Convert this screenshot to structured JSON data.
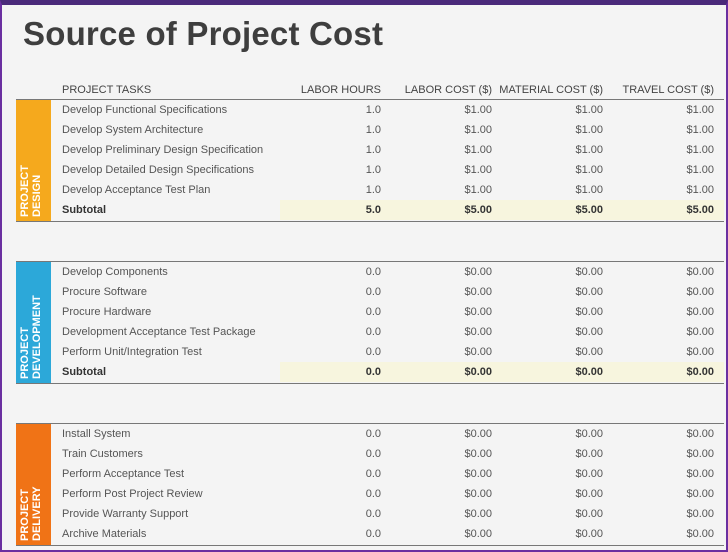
{
  "title": "Source of Project Cost",
  "headers": {
    "tasks": "PROJECT TASKS",
    "hours": "LABOR HOURS",
    "labor": "LABOR COST ($)",
    "material": "MATERIAL COST ($)",
    "travel": "TRAVEL COST ($)"
  },
  "colors": {
    "design": "#F5A91D",
    "development": "#2CA8D9",
    "delivery": "#F07316"
  },
  "sections": [
    {
      "label": "PROJECT\nDESIGN",
      "rows": [
        [
          "Develop Functional Specifications",
          "1.0",
          "$1.00",
          "$1.00",
          "$1.00"
        ],
        [
          "Develop System Architecture",
          "1.0",
          "$1.00",
          "$1.00",
          "$1.00"
        ],
        [
          "Develop Preliminary Design Specification",
          "1.0",
          "$1.00",
          "$1.00",
          "$1.00"
        ],
        [
          "Develop Detailed Design Specifications",
          "1.0",
          "$1.00",
          "$1.00",
          "$1.00"
        ],
        [
          "Develop Acceptance Test Plan",
          "1.0",
          "$1.00",
          "$1.00",
          "$1.00"
        ],
        [
          "Subtotal",
          "5.0",
          "$5.00",
          "$5.00",
          "$5.00"
        ]
      ]
    },
    {
      "label": "PROJECT\nDEVELOPMENT",
      "rows": [
        [
          "Develop Components",
          "0.0",
          "$0.00",
          "$0.00",
          "$0.00"
        ],
        [
          "Procure Software",
          "0.0",
          "$0.00",
          "$0.00",
          "$0.00"
        ],
        [
          "Procure Hardware",
          "0.0",
          "$0.00",
          "$0.00",
          "$0.00"
        ],
        [
          "Development Acceptance Test Package",
          "0.0",
          "$0.00",
          "$0.00",
          "$0.00"
        ],
        [
          "Perform Unit/Integration Test",
          "0.0",
          "$0.00",
          "$0.00",
          "$0.00"
        ],
        [
          "Subtotal",
          "0.0",
          "$0.00",
          "$0.00",
          "$0.00"
        ]
      ]
    },
    {
      "label": "PROJECT\nDELIVERY",
      "rows": [
        [
          "Install System",
          "0.0",
          "$0.00",
          "$0.00",
          "$0.00"
        ],
        [
          "Train Customers",
          "0.0",
          "$0.00",
          "$0.00",
          "$0.00"
        ],
        [
          "Perform Acceptance Test",
          "0.0",
          "$0.00",
          "$0.00",
          "$0.00"
        ],
        [
          "Perform Post Project Review",
          "0.0",
          "$0.00",
          "$0.00",
          "$0.00"
        ],
        [
          "Provide Warranty Support",
          "0.0",
          "$0.00",
          "$0.00",
          "$0.00"
        ],
        [
          "Archive Materials",
          "0.0",
          "$0.00",
          "$0.00",
          "$0.00"
        ]
      ]
    }
  ]
}
